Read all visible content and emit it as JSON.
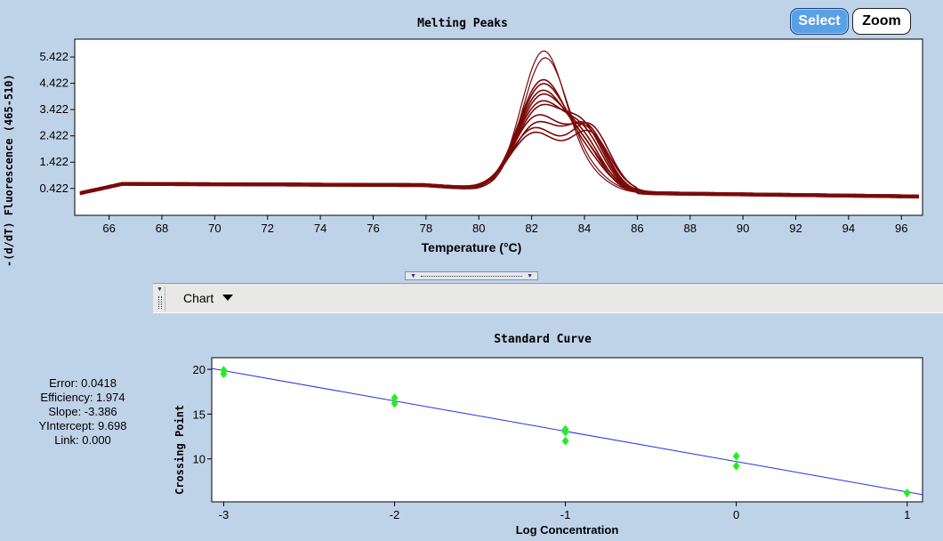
{
  "buttons": {
    "select": "Select",
    "zoom": "Zoom"
  },
  "melting": {
    "title": "Melting Peaks",
    "ylabel": "-(d/dT) Fluorescence (465-510)",
    "xlabel": "Temperature (°C)",
    "y_ticks": [
      "5.422",
      "4.422",
      "3.422",
      "2.422",
      "1.422",
      "0.422"
    ],
    "x_ticks": [
      "66",
      "68",
      "70",
      "72",
      "74",
      "76",
      "78",
      "80",
      "82",
      "84",
      "86",
      "88",
      "90",
      "92",
      "94",
      "96"
    ]
  },
  "toolbar": {
    "chart_label": "Chart",
    "dropdown_icon": "caret-down-icon"
  },
  "splitter": {
    "icon": "splitter-handle-icon"
  },
  "stats": {
    "error": "Error: 0.0418",
    "efficiency": "Efficiency: 1.974",
    "slope": "Slope: -3.386",
    "yintercept": "YIntercept: 9.698",
    "link": "Link: 0.000"
  },
  "standard": {
    "title": "Standard Curve",
    "ylabel": "Crossing Point",
    "xlabel": "Log Concentration",
    "y_ticks": [
      "20",
      "15",
      "10"
    ],
    "x_ticks": [
      "-3",
      "-2",
      "-1",
      "0",
      "1"
    ]
  },
  "chart_data": [
    {
      "type": "line",
      "title": "Melting Peaks",
      "xlabel": "Temperature (°C)",
      "ylabel": "-(d/dT) Fluorescence (465-510)",
      "xlim": [
        64.7,
        96.8
      ],
      "ylim": [
        -0.6,
        6.1
      ],
      "color": "#7a0a0a",
      "series": [
        {
          "peak_x": 82.45,
          "peak_y": 5.3,
          "sigma": 0.85,
          "shoulder_x": 84.2,
          "shoulder_y": 0.5
        },
        {
          "peak_x": 82.5,
          "peak_y": 5.0,
          "sigma": 0.85,
          "shoulder_x": 84.2,
          "shoulder_y": 0.6
        },
        {
          "peak_x": 82.4,
          "peak_y": 4.1,
          "sigma": 0.9,
          "shoulder_x": 84.1,
          "shoulder_y": 1.0
        },
        {
          "peak_x": 82.4,
          "peak_y": 3.9,
          "sigma": 0.9,
          "shoulder_x": 84.1,
          "shoulder_y": 1.2
        },
        {
          "peak_x": 82.35,
          "peak_y": 3.7,
          "sigma": 0.9,
          "shoulder_x": 84.0,
          "shoulder_y": 1.4
        },
        {
          "peak_x": 82.35,
          "peak_y": 3.5,
          "sigma": 0.9,
          "shoulder_x": 84.0,
          "shoulder_y": 1.6
        },
        {
          "peak_x": 82.3,
          "peak_y": 3.2,
          "sigma": 0.9,
          "shoulder_x": 84.0,
          "shoulder_y": 1.9
        },
        {
          "peak_x": 82.3,
          "peak_y": 3.0,
          "sigma": 0.9,
          "shoulder_x": 84.0,
          "shoulder_y": 2.1
        },
        {
          "peak_x": 82.2,
          "peak_y": 2.8,
          "sigma": 0.9,
          "shoulder_x": 84.1,
          "shoulder_y": 2.2
        },
        {
          "peak_x": 82.2,
          "peak_y": 2.5,
          "sigma": 0.9,
          "shoulder_x": 84.1,
          "shoulder_y": 2.3
        },
        {
          "peak_x": 82.1,
          "peak_y": 2.3,
          "sigma": 0.9,
          "shoulder_x": 84.2,
          "shoulder_y": 2.4
        },
        {
          "peak_x": 82.1,
          "peak_y": 2.1,
          "sigma": 0.9,
          "shoulder_x": 84.2,
          "shoulder_y": 2.1
        }
      ]
    },
    {
      "type": "scatter",
      "title": "Standard Curve",
      "xlabel": "Log Concentration",
      "ylabel": "Crossing Point",
      "xlim": [
        -3.07,
        1.09
      ],
      "ylim": [
        5.2,
        21.3
      ],
      "points": [
        {
          "x": -3,
          "y": 19.9
        },
        {
          "x": -3,
          "y": 19.5
        },
        {
          "x": -2,
          "y": 16.8
        },
        {
          "x": -2,
          "y": 16.2
        },
        {
          "x": -1,
          "y": 13.3
        },
        {
          "x": -1,
          "y": 13.0
        },
        {
          "x": -1,
          "y": 12.0
        },
        {
          "x": 0,
          "y": 10.3
        },
        {
          "x": 0,
          "y": 9.2
        },
        {
          "x": 1,
          "y": 6.2
        }
      ],
      "fit": {
        "slope": -3.386,
        "intercept": 9.698,
        "x_range": [
          -3.07,
          1.09
        ]
      },
      "point_color": "#22ee22",
      "line_color": "#2233dd"
    }
  ]
}
